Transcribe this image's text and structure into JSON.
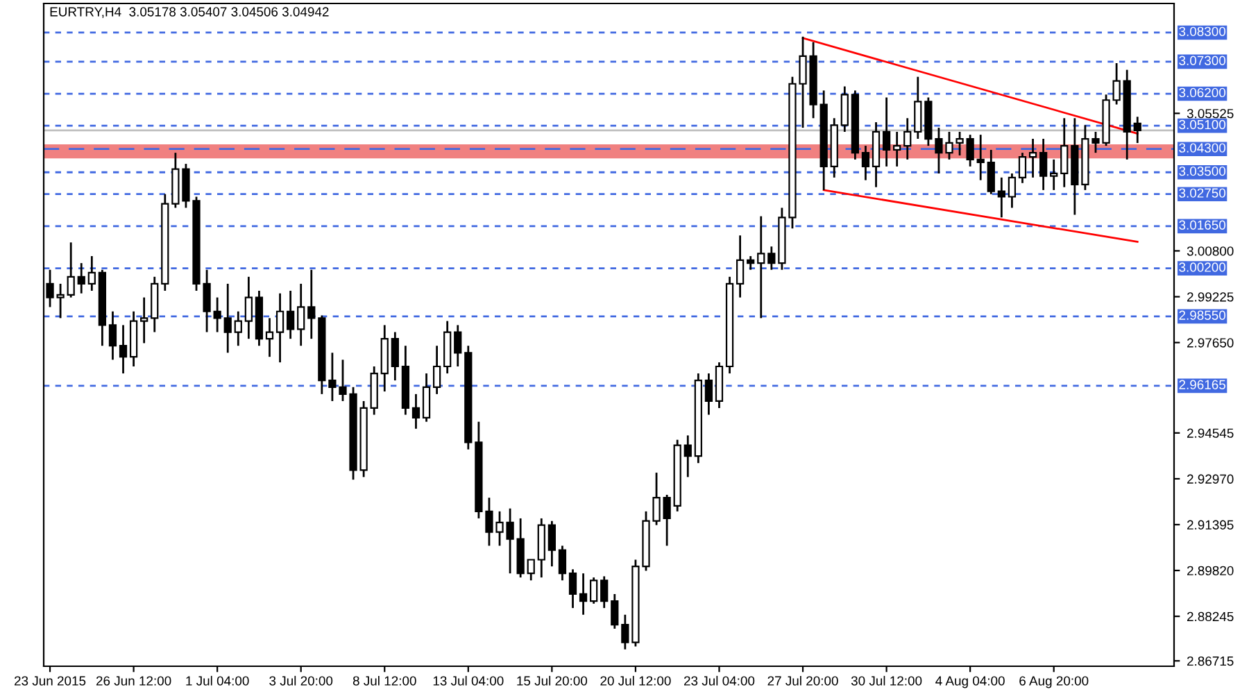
{
  "chart_data": {
    "type": "candlestick",
    "title": "EURTRY,H4  3.05178 3.05407 3.04506 3.04942",
    "categories": [
      "23 Jun 2015",
      null,
      null,
      null,
      null,
      null,
      null,
      null,
      "26 Jun 12:00",
      null,
      null,
      null,
      null,
      null,
      null,
      null,
      "1 Jul 04:00",
      null,
      null,
      null,
      null,
      null,
      null,
      null,
      "3 Jul 20:00",
      null,
      null,
      null,
      null,
      null,
      null,
      null,
      "8 Jul 12:00",
      null,
      null,
      null,
      null,
      null,
      null,
      null,
      "13 Jul 04:00",
      null,
      null,
      null,
      null,
      null,
      null,
      null,
      "15 Jul 20:00",
      null,
      null,
      null,
      null,
      null,
      null,
      null,
      "20 Jul 12:00",
      null,
      null,
      null,
      null,
      null,
      null,
      null,
      "23 Jul 04:00",
      null,
      null,
      null,
      null,
      null,
      null,
      null,
      "27 Jul 20:00",
      null,
      null,
      null,
      null,
      null,
      null,
      null,
      "30 Jul 12:00",
      null,
      null,
      null,
      null,
      null,
      null,
      null,
      "4 Aug 04:00",
      null,
      null,
      null,
      null,
      null,
      null,
      null,
      "6 Aug 20:00",
      null,
      null,
      null,
      null,
      null,
      null,
      null,
      null
    ],
    "ohlc": [
      [
        2.9967,
        3.0015,
        2.9887,
        2.992
      ],
      [
        2.992,
        2.9967,
        2.9849,
        2.9929
      ],
      [
        2.9929,
        3.0109,
        2.992,
        2.9991
      ],
      [
        2.9991,
        3.0038,
        2.9934,
        2.9967
      ],
      [
        2.9967,
        3.0062,
        2.9943,
        3.0005
      ],
      [
        3.0005,
        3.0015,
        2.9754,
        2.9825
      ],
      [
        2.9825,
        2.9872,
        2.9706,
        2.9754
      ],
      [
        2.9754,
        2.9825,
        2.9659,
        2.9716
      ],
      [
        2.9716,
        2.9872,
        2.9683,
        2.9839
      ],
      [
        2.9839,
        2.992,
        2.9763,
        2.9849
      ],
      [
        2.9849,
        2.9991,
        2.9801,
        2.9967
      ],
      [
        2.9967,
        3.0275,
        2.9943,
        3.0242
      ],
      [
        3.0242,
        3.0417,
        3.0228,
        3.0361
      ],
      [
        3.0361,
        3.0379,
        3.0228,
        3.0252
      ],
      [
        3.0252,
        3.0266,
        2.9943,
        2.9967
      ],
      [
        2.9967,
        3.0015,
        2.9801,
        2.9872
      ],
      [
        2.9872,
        2.992,
        2.9801,
        2.9849
      ],
      [
        2.9849,
        2.9967,
        2.973,
        2.9801
      ],
      [
        2.9801,
        2.9872,
        2.9754,
        2.9839
      ],
      [
        2.9839,
        2.9991,
        2.9778,
        2.992
      ],
      [
        2.992,
        2.9943,
        2.9754,
        2.9778
      ],
      [
        2.9778,
        2.9849,
        2.9716,
        2.9801
      ],
      [
        2.9801,
        2.9934,
        2.9697,
        2.9872
      ],
      [
        2.9872,
        2.9943,
        2.9778,
        2.9811
      ],
      [
        2.9811,
        2.9967,
        2.9754,
        2.9887
      ],
      [
        2.9887,
        3.0015,
        2.9778,
        2.9849
      ],
      [
        2.9849,
        2.9858,
        2.9588,
        2.9635
      ],
      [
        2.9635,
        2.973,
        2.9564,
        2.9612
      ],
      [
        2.9612,
        2.9706,
        2.9564,
        2.9588
      ],
      [
        2.9588,
        2.9612,
        2.9294,
        2.9327
      ],
      [
        2.9327,
        2.9564,
        2.9303,
        2.954
      ],
      [
        2.954,
        2.9683,
        2.9517,
        2.9659
      ],
      [
        2.9659,
        2.9825,
        2.9597,
        2.9778
      ],
      [
        2.9778,
        2.9801,
        2.9635,
        2.9683
      ],
      [
        2.9683,
        2.9754,
        2.9517,
        2.954
      ],
      [
        2.954,
        2.9588,
        2.9469,
        2.9507
      ],
      [
        2.9507,
        2.9659,
        2.9493,
        2.9612
      ],
      [
        2.9612,
        2.9754,
        2.9588,
        2.9683
      ],
      [
        2.9683,
        2.9839,
        2.9659,
        2.9801
      ],
      [
        2.9801,
        2.9825,
        2.9683,
        2.973
      ],
      [
        2.973,
        2.9754,
        2.9398,
        2.9422
      ],
      [
        2.9422,
        2.9493,
        2.9161,
        2.9185
      ],
      [
        2.9185,
        2.9232,
        2.9067,
        2.9114
      ],
      [
        2.9114,
        2.9185,
        2.9067,
        2.9147
      ],
      [
        2.9147,
        2.9195,
        2.8972,
        2.909
      ],
      [
        2.909,
        2.9161,
        2.8958,
        2.8972
      ],
      [
        2.8972,
        2.9019,
        2.8948,
        2.9019
      ],
      [
        2.9019,
        2.9161,
        2.8958,
        2.9138
      ],
      [
        2.9138,
        2.9152,
        2.8996,
        2.9052
      ],
      [
        2.9052,
        2.9067,
        2.8948,
        2.8972
      ],
      [
        2.8972,
        2.8986,
        2.8853,
        2.8901
      ],
      [
        2.8901,
        2.8972,
        2.883,
        2.8877
      ],
      [
        2.8877,
        2.8958,
        2.8868,
        2.8948
      ],
      [
        2.8948,
        2.8962,
        2.8853,
        2.8877
      ],
      [
        2.8877,
        2.8901,
        2.8782,
        2.8796
      ],
      [
        2.8796,
        2.883,
        2.8711,
        2.8735
      ],
      [
        2.8735,
        2.9019,
        2.8721,
        2.8996
      ],
      [
        2.8996,
        2.9185,
        2.8981,
        2.9152
      ],
      [
        2.9152,
        2.9318,
        2.9138,
        2.9232
      ],
      [
        2.9232,
        2.9242,
        2.9067,
        2.9161
      ],
      [
        2.9204,
        2.9431,
        2.9185,
        2.9412
      ],
      [
        2.9412,
        2.9446,
        2.9303,
        2.9375
      ],
      [
        2.9375,
        2.9659,
        2.9351,
        2.9635
      ],
      [
        2.9635,
        2.9659,
        2.9517,
        2.9564
      ],
      [
        2.9564,
        2.9697,
        2.954,
        2.9683
      ],
      [
        2.9683,
        2.9991,
        2.9659,
        2.9967
      ],
      [
        2.9967,
        3.0133,
        2.992,
        3.0048
      ],
      [
        3.0048,
        3.0062,
        3.0015,
        3.0038
      ],
      [
        3.0038,
        3.0199,
        2.9849,
        3.0071
      ],
      [
        3.0071,
        3.0095,
        3.0015,
        3.0038
      ],
      [
        3.0038,
        3.0228,
        3.0015,
        3.0195
      ],
      [
        3.0195,
        3.0678,
        3.0157,
        3.0654
      ],
      [
        3.0654,
        3.0816,
        3.0503,
        3.0749
      ],
      [
        3.0749,
        3.0797,
        3.0536,
        3.0583
      ],
      [
        3.0583,
        3.0631,
        3.0289,
        3.037
      ],
      [
        3.037,
        3.0536,
        3.0332,
        3.0512
      ],
      [
        3.0512,
        3.0645,
        3.0489,
        3.0617
      ],
      [
        3.0617,
        3.0631,
        3.0394,
        3.0417
      ],
      [
        3.0417,
        3.0441,
        3.0323,
        3.037
      ],
      [
        3.037,
        3.0522,
        3.0299,
        3.0489
      ],
      [
        3.0489,
        3.0607,
        3.037,
        3.0427
      ],
      [
        3.0427,
        3.0489,
        3.037,
        3.0441
      ],
      [
        3.0441,
        3.0536,
        3.0394,
        3.0489
      ],
      [
        3.0489,
        3.0678,
        3.0465,
        3.0593
      ],
      [
        3.0593,
        3.0607,
        3.0441,
        3.0465
      ],
      [
        3.0465,
        3.0503,
        3.0346,
        3.0417
      ],
      [
        3.0417,
        3.0489,
        3.0394,
        3.0451
      ],
      [
        3.0451,
        3.0489,
        3.0408,
        3.0465
      ],
      [
        3.0465,
        3.0479,
        3.037,
        3.0394
      ],
      [
        3.0394,
        3.0479,
        3.0323,
        3.0384
      ],
      [
        3.0384,
        3.0427,
        3.0275,
        3.0285
      ],
      [
        3.0285,
        3.0332,
        3.0195,
        3.0266
      ],
      [
        3.0266,
        3.0346,
        3.0228,
        3.0332
      ],
      [
        3.0332,
        3.0417,
        3.0313,
        3.0403
      ],
      [
        3.0403,
        3.0465,
        3.0332,
        3.0417
      ],
      [
        3.0417,
        3.0465,
        3.0289,
        3.0337
      ],
      [
        3.0337,
        3.0394,
        3.0289,
        3.0346
      ],
      [
        3.0346,
        3.0536,
        3.0299,
        3.0441
      ],
      [
        3.0441,
        3.0536,
        3.0204,
        3.0308
      ],
      [
        3.0308,
        3.0512,
        3.0289,
        3.0465
      ],
      [
        3.0465,
        3.0489,
        3.0417,
        3.0451
      ],
      [
        3.0451,
        3.0617,
        3.0441,
        3.0598
      ],
      [
        3.0598,
        3.0725,
        3.0583,
        3.0664
      ],
      [
        3.0664,
        3.0702,
        3.0394,
        3.0489
      ],
      [
        3.05178,
        3.05407,
        3.04506,
        3.04942
      ]
    ],
    "series": [
      {
        "type": "line",
        "color": "#ff0000",
        "values": [
          null,
          null,
          null,
          null,
          null,
          null,
          null,
          null,
          null,
          null,
          null,
          null,
          null,
          null,
          null,
          null,
          null,
          null,
          null,
          null,
          null,
          null,
          null,
          null,
          null,
          null,
          null,
          null,
          null,
          null,
          null,
          null,
          null,
          null,
          null,
          null,
          null,
          null,
          null,
          null,
          null,
          null,
          null,
          null,
          null,
          null,
          null,
          null,
          null,
          null,
          null,
          null,
          null,
          null,
          null,
          null,
          null,
          null,
          null,
          null,
          null,
          null,
          null,
          null,
          null,
          null,
          null,
          null,
          null,
          null,
          null,
          null,
          3.0811,
          null,
          null,
          null,
          null,
          null,
          null,
          null,
          null,
          null,
          null,
          null,
          null,
          null,
          null,
          null,
          null,
          null,
          null,
          null,
          null,
          null,
          null,
          null,
          null,
          null,
          null,
          null,
          null,
          null,
          null,
          null,
          3.0483
        ]
      },
      {
        "type": "line",
        "color": "#ff0000",
        "values": [
          null,
          null,
          null,
          null,
          null,
          null,
          null,
          null,
          null,
          null,
          null,
          null,
          null,
          null,
          null,
          null,
          null,
          null,
          null,
          null,
          null,
          null,
          null,
          null,
          null,
          null,
          null,
          null,
          null,
          null,
          null,
          null,
          null,
          null,
          null,
          null,
          null,
          null,
          null,
          null,
          null,
          null,
          null,
          null,
          null,
          null,
          null,
          null,
          null,
          null,
          null,
          null,
          null,
          null,
          null,
          null,
          null,
          null,
          null,
          null,
          null,
          null,
          null,
          null,
          null,
          null,
          null,
          null,
          null,
          null,
          null,
          null,
          null,
          null,
          3.0289,
          null,
          null,
          null,
          null,
          null,
          null,
          null,
          null,
          null,
          null,
          null,
          null,
          null,
          null,
          null,
          null,
          null,
          null,
          null,
          null,
          null,
          null,
          null,
          null,
          null,
          null,
          null,
          null,
          null,
          3.0111
        ]
      }
    ],
    "ylim": [
      2.8653,
      3.093
    ],
    "yticks": [
      3.05525,
      {
        "value": 3.008,
        "label": "3.00800"
      },
      2.99225,
      {
        "value": 2.9765,
        "label": "2.97650"
      },
      2.94545,
      {
        "value": 2.9297,
        "label": "2.92970"
      },
      2.91395,
      {
        "value": 2.8982,
        "label": "2.89820"
      },
      2.88245,
      2.86715
    ],
    "ref_lines": [
      {
        "axis": "y",
        "value": 3.083,
        "label": "3.08300",
        "color": "#4169e1",
        "line_style": "dotted"
      },
      {
        "axis": "y",
        "value": 3.073,
        "label": "3.07300",
        "color": "#4169e1",
        "line_style": "dotted"
      },
      {
        "axis": "y",
        "value": 3.062,
        "label": "3.06200",
        "color": "#4169e1",
        "line_style": "dotted"
      },
      {
        "axis": "y",
        "value": 3.051,
        "label": "3.05100",
        "color": "#4169e1",
        "line_style": "dotted"
      },
      {
        "axis": "y",
        "value": 3.04942,
        "color": "#c0c0c0",
        "line_style": "solid"
      },
      {
        "axis": "y",
        "value": 3.043,
        "label": "3.04300",
        "color": "#4169e1",
        "line_style": "dashed"
      },
      {
        "axis": "y",
        "value": 3.035,
        "label": "3.03500",
        "color": "#4169e1",
        "line_style": "dotted"
      },
      {
        "axis": "y",
        "value": 3.0275,
        "label": "3.02750",
        "color": "#4169e1",
        "line_style": "dotted"
      },
      {
        "axis": "y",
        "value": 3.0165,
        "label": "3.01650",
        "color": "#4169e1",
        "line_style": "dotted"
      },
      {
        "axis": "y",
        "value": 3.002,
        "label": "3.00200",
        "color": "#4169e1",
        "line_style": "dotted"
      },
      {
        "axis": "y",
        "value": 2.9855,
        "label": "2.98550",
        "color": "#4169e1",
        "line_style": "dotted"
      },
      {
        "axis": "y",
        "value": 2.96165,
        "label": "2.96165",
        "color": "#4169e1",
        "line_style": "dotted"
      }
    ],
    "bands": [
      {
        "axis": "y",
        "from": 3.0398,
        "to": 3.0446,
        "color": "#f08080"
      }
    ],
    "grid": false
  }
}
